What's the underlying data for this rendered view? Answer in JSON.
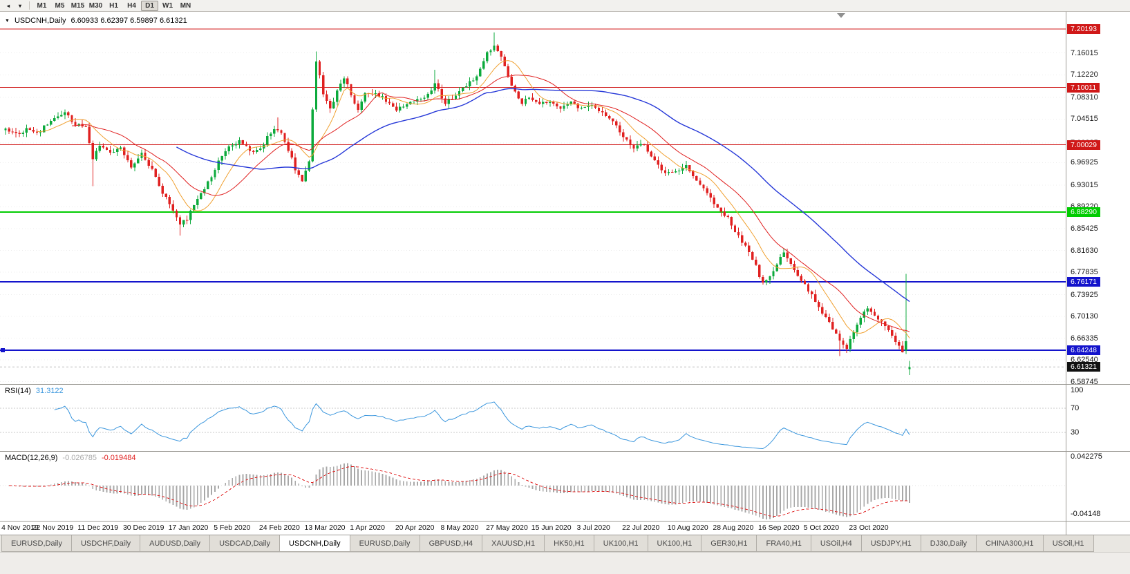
{
  "toolbar": {
    "timeframes": [
      "M1",
      "M5",
      "M15",
      "M30",
      "H1",
      "H4",
      "D1",
      "W1",
      "MN"
    ],
    "active_timeframe": "D1"
  },
  "icons": {
    "scroll_left": "◂",
    "menu_caret": "▾",
    "symbol_menu": "▼"
  },
  "chart": {
    "symbol_title": "USDCNH,Daily",
    "ohlc_title": "6.60933 6.62397 6.59897 6.61321",
    "current_price": {
      "value": 6.61321,
      "label": "6.61321",
      "box_color": "#111111"
    },
    "levels": [
      {
        "value": 7.20193,
        "label": "7.20193",
        "color": "#d01818",
        "width": 1.2,
        "handle": false
      },
      {
        "value": 7.10011,
        "label": "7.10011",
        "color": "#d01818",
        "width": 1.2,
        "handle": false
      },
      {
        "value": 7.00029,
        "label": "7.00029",
        "color": "#d01818",
        "width": 1.2,
        "handle": false
      },
      {
        "value": 6.8829,
        "label": "6.88290",
        "color": "#00cc00",
        "width": 2,
        "handle": false
      },
      {
        "value": 6.76171,
        "label": "6.76171",
        "color": "#1414cc",
        "width": 2,
        "handle": false
      },
      {
        "value": 6.64248,
        "label": "6.64248",
        "color": "#1414cc",
        "width": 2,
        "handle": true
      }
    ],
    "price_ticks": [
      "7.16015",
      "7.12220",
      "7.08310",
      "7.04515",
      "7.00335",
      "6.96925",
      "6.93015",
      "6.89220",
      "6.85425",
      "6.81630",
      "6.77835",
      "6.73925",
      "6.70130",
      "6.66335",
      "6.62540",
      "6.58745"
    ],
    "date_ticks": [
      "4 Nov 2019",
      "22 Nov 2019",
      "11 Dec 2019",
      "30 Dec 2019",
      "17 Jan 2020",
      "5 Feb 2020",
      "24 Feb 2020",
      "13 Mar 2020",
      "1 Apr 2020",
      "20 Apr 2020",
      "8 May 2020",
      "27 May 2020",
      "15 Jun 2020",
      "3 Jul 2020",
      "22 Jul 2020",
      "10 Aug 2020",
      "28 Aug 2020",
      "16 Sep 2020",
      "5 Oct 2020",
      "23 Oct 2020"
    ]
  },
  "chart_data": {
    "type": "candlestick",
    "symbol": "USDCNH",
    "timeframe": "Daily",
    "count": 260,
    "ylim": [
      6.5835,
      7.232
    ],
    "seed": 12,
    "noise": 0.007,
    "wick": 0.008,
    "up_color": "#0caa3c",
    "down_color": "#e02020",
    "moving_averages": [
      {
        "period": 10,
        "color": "#f0a030",
        "width": 1
      },
      {
        "period": 20,
        "color": "#e02020",
        "width": 1
      },
      {
        "period": 50,
        "color": "#2638d8",
        "width": 1.4
      }
    ],
    "anchors": [
      [
        0,
        7.03
      ],
      [
        3,
        7.018
      ],
      [
        6,
        7.028
      ],
      [
        9,
        7.02
      ],
      [
        13,
        7.042
      ],
      [
        17,
        7.055
      ],
      [
        20,
        7.035
      ],
      [
        23,
        7.032
      ],
      [
        25,
        6.978
      ],
      [
        27,
        7.002
      ],
      [
        30,
        6.988
      ],
      [
        33,
        6.995
      ],
      [
        36,
        6.962
      ],
      [
        39,
        6.985
      ],
      [
        42,
        6.958
      ],
      [
        45,
        6.918
      ],
      [
        48,
        6.888
      ],
      [
        50,
        6.862
      ],
      [
        52,
        6.872
      ],
      [
        55,
        6.908
      ],
      [
        58,
        6.935
      ],
      [
        61,
        6.972
      ],
      [
        64,
        6.998
      ],
      [
        67,
        7.008
      ],
      [
        70,
        6.988
      ],
      [
        73,
        6.992
      ],
      [
        76,
        7.022
      ],
      [
        78,
        7.028
      ],
      [
        80,
        7.008
      ],
      [
        83,
        6.958
      ],
      [
        85,
        6.938
      ],
      [
        87,
        6.972
      ],
      [
        89,
        7.148
      ],
      [
        91,
        7.088
      ],
      [
        93,
        7.06
      ],
      [
        95,
        7.095
      ],
      [
        97,
        7.118
      ],
      [
        99,
        7.088
      ],
      [
        101,
        7.062
      ],
      [
        103,
        7.088
      ],
      [
        106,
        7.092
      ],
      [
        109,
        7.078
      ],
      [
        112,
        7.062
      ],
      [
        115,
        7.072
      ],
      [
        118,
        7.078
      ],
      [
        121,
        7.088
      ],
      [
        123,
        7.108
      ],
      [
        126,
        7.072
      ],
      [
        129,
        7.088
      ],
      [
        132,
        7.102
      ],
      [
        135,
        7.122
      ],
      [
        138,
        7.162
      ],
      [
        140,
        7.172
      ],
      [
        142,
        7.152
      ],
      [
        144,
        7.122
      ],
      [
        146,
        7.092
      ],
      [
        148,
        7.072
      ],
      [
        150,
        7.085
      ],
      [
        153,
        7.072
      ],
      [
        156,
        7.078
      ],
      [
        159,
        7.062
      ],
      [
        162,
        7.075
      ],
      [
        165,
        7.062
      ],
      [
        168,
        7.07
      ],
      [
        171,
        7.058
      ],
      [
        174,
        7.042
      ],
      [
        177,
        7.012
      ],
      [
        180,
        6.995
      ],
      [
        183,
        7.002
      ],
      [
        186,
        6.972
      ],
      [
        189,
        6.952
      ],
      [
        192,
        6.952
      ],
      [
        195,
        6.962
      ],
      [
        198,
        6.938
      ],
      [
        201,
        6.915
      ],
      [
        204,
        6.892
      ],
      [
        207,
        6.872
      ],
      [
        210,
        6.84
      ],
      [
        213,
        6.812
      ],
      [
        215,
        6.788
      ],
      [
        217,
        6.758
      ],
      [
        219,
        6.772
      ],
      [
        221,
        6.792
      ],
      [
        223,
        6.812
      ],
      [
        225,
        6.795
      ],
      [
        227,
        6.775
      ],
      [
        229,
        6.758
      ],
      [
        231,
        6.738
      ],
      [
        233,
        6.715
      ],
      [
        235,
        6.7
      ],
      [
        237,
        6.682
      ],
      [
        239,
        6.658
      ],
      [
        241,
        6.648
      ],
      [
        243,
        6.672
      ],
      [
        245,
        6.7
      ],
      [
        247,
        6.715
      ],
      [
        249,
        6.702
      ],
      [
        251,
        6.692
      ],
      [
        253,
        6.678
      ],
      [
        255,
        6.658
      ],
      [
        257,
        6.64
      ],
      [
        258,
        6.658
      ],
      [
        259,
        6.61321
      ]
    ],
    "overrides": {
      "17": {
        "h": 7.062
      },
      "25": {
        "l": 6.928
      },
      "50": {
        "l": 6.842
      },
      "78": {
        "h": 7.048
      },
      "89": {
        "h": 7.163
      },
      "123": {
        "h": 7.131
      },
      "140": {
        "h": 7.196
      },
      "239": {
        "l": 6.632
      },
      "258": {
        "o": 6.642,
        "h": 6.7755,
        "l": 6.636,
        "c": 6.658
      },
      "259": {
        "o": 6.60933,
        "h": 6.62397,
        "l": 6.59897,
        "c": 6.61321
      }
    }
  },
  "rsi": {
    "label": "RSI(14)",
    "value": "31.3122",
    "period": 14,
    "color": "#3a96dd",
    "axis_levels": [
      100,
      70,
      30
    ],
    "line_levels": [
      70,
      30
    ]
  },
  "macd": {
    "label": "MACD(12,26,9)",
    "value_main": "-0.026785",
    "value_signal": "-0.019484",
    "histogram_color": "#a8a8a8",
    "signal_color": "#e02020",
    "axis_labels": [
      "0.042275",
      "-0.04148"
    ]
  },
  "tabs": [
    {
      "label": "EURUSD,Daily",
      "active": false
    },
    {
      "label": "USDCHF,Daily",
      "active": false
    },
    {
      "label": "AUDUSD,Daily",
      "active": false
    },
    {
      "label": "USDCAD,Daily",
      "active": false
    },
    {
      "label": "USDCNH,Daily",
      "active": true
    },
    {
      "label": "EURUSD,Daily",
      "active": false
    },
    {
      "label": "GBPUSD,H4",
      "active": false
    },
    {
      "label": "XAUUSD,H1",
      "active": false
    },
    {
      "label": "HK50,H1",
      "active": false
    },
    {
      "label": "UK100,H1",
      "active": false
    },
    {
      "label": "UK100,H1",
      "active": false
    },
    {
      "label": "GER30,H1",
      "active": false
    },
    {
      "label": "FRA40,H1",
      "active": false
    },
    {
      "label": "USOil,H4",
      "active": false
    },
    {
      "label": "USDJPY,H1",
      "active": false
    },
    {
      "label": "DJ30,Daily",
      "active": false
    },
    {
      "label": "CHINA300,H1",
      "active": false
    },
    {
      "label": "USOil,H1",
      "active": false
    }
  ]
}
